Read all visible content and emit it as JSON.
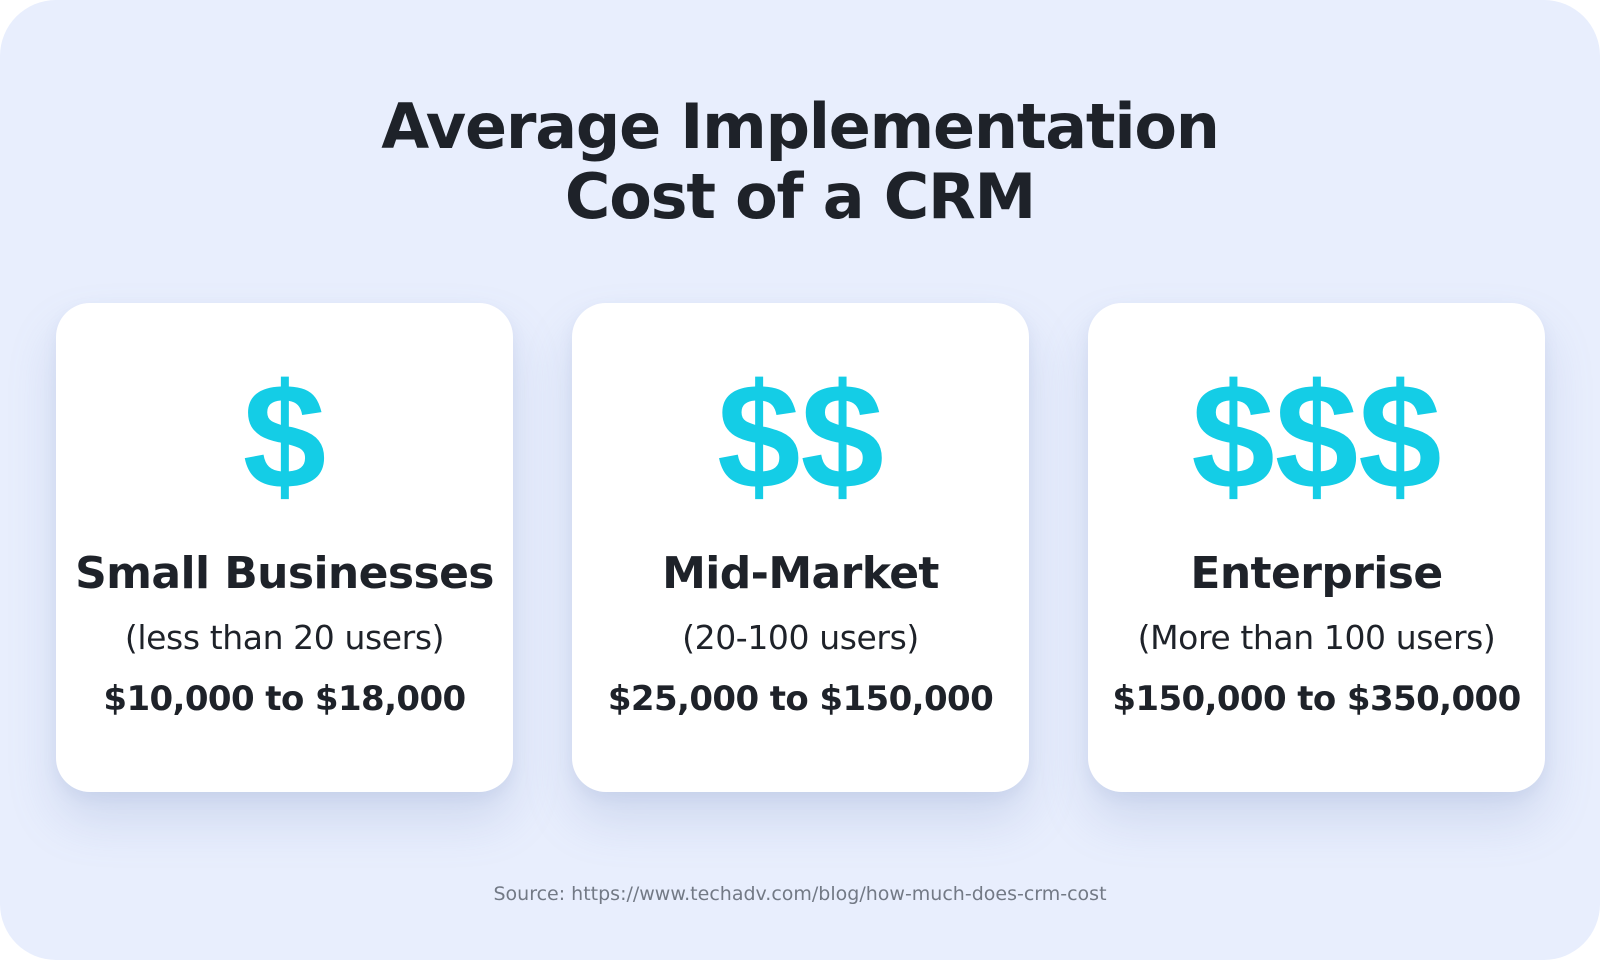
{
  "title": {
    "line1": "Average Implementation",
    "line2": "Cost of a CRM"
  },
  "colors": {
    "background": "#e8eefd",
    "card": "#ffffff",
    "accent": "#14cde6",
    "text": "#1e2229",
    "muted": "#727985"
  },
  "cards": [
    {
      "symbol": "$",
      "segment": "Small Businesses",
      "users": "(less than 20 users)",
      "range": "$10,000 to $18,000"
    },
    {
      "symbol": "$$",
      "segment": "Mid-Market",
      "users": "(20-100 users)",
      "range": "$25,000 to $150,000"
    },
    {
      "symbol": "$$$",
      "segment": "Enterprise",
      "users": "(More than 100 users)",
      "range": "$150,000 to $350,000"
    }
  ],
  "source": "Source: https://www.techadv.com/blog/how-much-does-crm-cost"
}
